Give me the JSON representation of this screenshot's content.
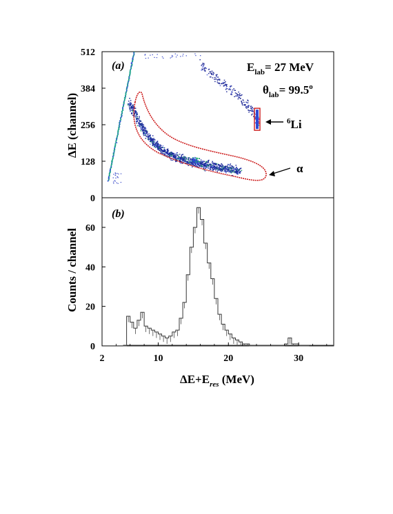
{
  "chart_data": [
    {
      "panel": "(a)",
      "type": "scatter",
      "ylabel": "ΔE (channel)",
      "y_ticks": [
        "0",
        "128",
        "256",
        "384",
        "512"
      ],
      "ylim": [
        0,
        512
      ],
      "xlim": [
        2,
        35
      ],
      "annotations": {
        "energy_main": "E",
        "energy_sub": "lab",
        "energy_val": "= 27 MeV",
        "theta_main": "θ",
        "theta_sub": "lab",
        "theta_val": "= 99.5",
        "theta_deg": "o",
        "li_sup": "6",
        "li_main": "Li",
        "alpha": "α"
      },
      "alpha_band": {
        "x": [
          5.8,
          6.5,
          7.5,
          8.5,
          9.5,
          10.5,
          11.5,
          12.5,
          13.5,
          14.5,
          15.5,
          16.5,
          17.5,
          18.5,
          19.5,
          20.5,
          21.5
        ],
        "y": [
          335,
          300,
          255,
          215,
          190,
          170,
          155,
          143,
          135,
          128,
          123,
          118,
          113,
          108,
          104,
          100,
          95
        ]
      },
      "li_band": {
        "x": [
          16.0,
          17.0,
          18.0,
          19.0,
          20.0,
          21.0,
          22.0,
          22.8,
          23.5,
          24.2
        ],
        "y": [
          465,
          445,
          425,
          405,
          385,
          365,
          345,
          320,
          300,
          280
        ]
      },
      "li_spot": {
        "x": 24.1,
        "y": 275
      },
      "punch_line": {
        "x": [
          2.8,
          6.5
        ],
        "y": [
          60,
          512
        ]
      }
    },
    {
      "panel": "(b)",
      "type": "histogram",
      "xlabel": "ΔE+E",
      "xlabel_sub": "res",
      "xlabel_unit": " (MeV)",
      "ylabel": "Counts / channel",
      "x_ticks": [
        "2",
        "10",
        "20",
        "30"
      ],
      "y_ticks": [
        "0",
        "20",
        "40",
        "60"
      ],
      "xlim": [
        2,
        35
      ],
      "ylim": [
        0,
        75
      ],
      "x": [
        5.0,
        5.5,
        6.0,
        6.5,
        7.0,
        7.5,
        8.0,
        8.5,
        9.0,
        9.5,
        10.0,
        10.5,
        11.0,
        11.5,
        12.0,
        12.5,
        13.0,
        13.5,
        14.0,
        14.5,
        15.0,
        15.5,
        16.0,
        16.5,
        17.0,
        17.5,
        18.0,
        18.5,
        19.0,
        19.5,
        20.0,
        20.5,
        21.0,
        21.5,
        22.0,
        22.5,
        23.0,
        24.0,
        25.0,
        26.0,
        27.0,
        28.0,
        28.5,
        29.0,
        30.0,
        31.0
      ],
      "counts": [
        0,
        15,
        12,
        9,
        13,
        17,
        10,
        9,
        8,
        7,
        6,
        5,
        4,
        5,
        7,
        8,
        14,
        22,
        36,
        50,
        60,
        70,
        64,
        52,
        42,
        34,
        24,
        16,
        11,
        8,
        6,
        4,
        3,
        2,
        1,
        1,
        0,
        0,
        0,
        0,
        0,
        1,
        4,
        1,
        0,
        0
      ]
    }
  ]
}
